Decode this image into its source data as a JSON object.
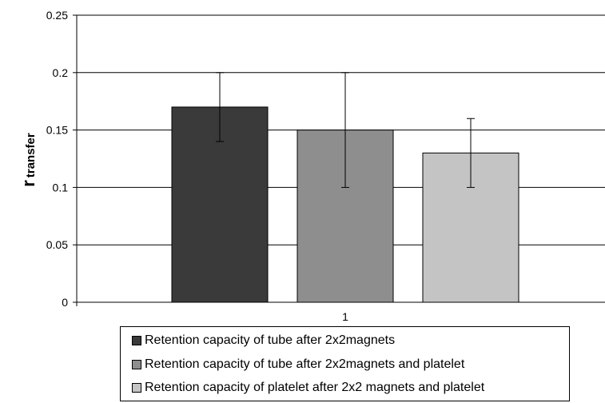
{
  "chart_data": {
    "type": "bar",
    "title": "",
    "xlabel": "",
    "ylabel": {
      "main": "r",
      "subscript": "transfer"
    },
    "ylim": [
      0,
      0.25
    ],
    "yticks": [
      "0",
      "0.05",
      "0.1",
      "0.15",
      "0.2",
      "0.25"
    ],
    "categories": [
      "1"
    ],
    "grid": true,
    "legend_position": "bottom",
    "series": [
      {
        "name": "Retention capacity of tube after 2x2magnets",
        "values": [
          0.17
        ],
        "error_low": [
          0.14
        ],
        "error_high": [
          0.2
        ],
        "color": "#3a3a3a"
      },
      {
        "name": "Retention capacity of tube after 2x2magnets and platelet",
        "values": [
          0.15
        ],
        "error_low": [
          0.1
        ],
        "error_high": [
          0.2
        ],
        "color": "#8e8e8e"
      },
      {
        "name": "Retention capacity of platelet after 2x2 magnets and platelet",
        "values": [
          0.13
        ],
        "error_low": [
          0.1
        ],
        "error_high": [
          0.16
        ],
        "color": "#c4c4c4"
      }
    ]
  }
}
